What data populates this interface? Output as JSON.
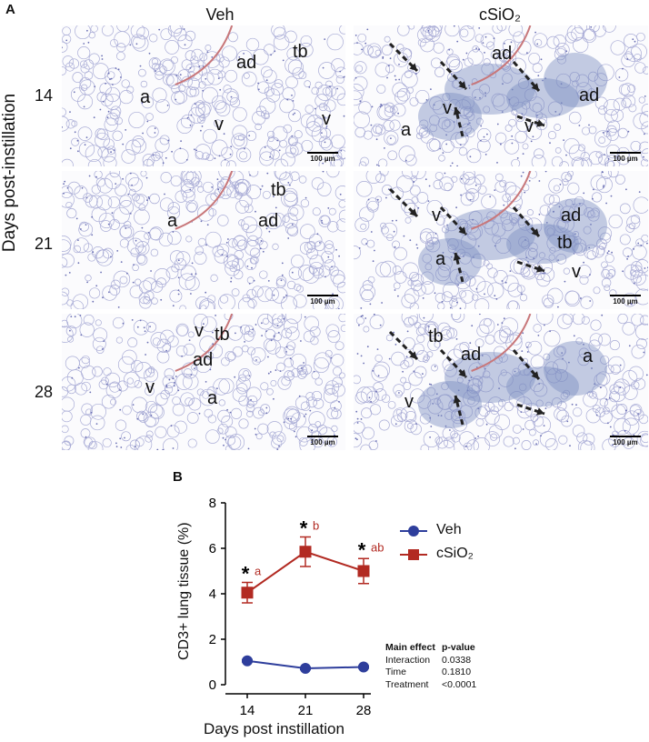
{
  "panel_a": {
    "letter": "A",
    "col_headers": [
      "Veh",
      "cSiO₂"
    ],
    "row_headers": [
      "14",
      "21",
      "28"
    ],
    "row_axis_label": "Days post-instillation",
    "scalebar_label": "100 µm",
    "tiles": [
      {
        "name": "veh-14",
        "labels": [
          "ad",
          "tb",
          "a",
          "v",
          "v"
        ]
      },
      {
        "name": "csio2-14",
        "labels": [
          "ad",
          "ad",
          "a",
          "v",
          "v"
        ]
      },
      {
        "name": "veh-21",
        "labels": [
          "tb",
          "ad",
          "a"
        ]
      },
      {
        "name": "csio2-21",
        "labels": [
          "v",
          "ad",
          "tb",
          "a",
          "v"
        ]
      },
      {
        "name": "veh-28",
        "labels": [
          "v",
          "tb",
          "ad",
          "v",
          "a"
        ]
      },
      {
        "name": "csio2-28",
        "labels": [
          "tb",
          "ad",
          "a",
          "v"
        ]
      }
    ]
  },
  "panel_b": {
    "letter": "B",
    "chart_data": {
      "type": "line",
      "xlabel": "Days post instillation",
      "ylabel": "CD3+ lung tissue (%)",
      "x": [
        14,
        21,
        28
      ],
      "ylim": [
        0,
        8
      ],
      "yticks": [
        0,
        2,
        4,
        6,
        8
      ],
      "series": [
        {
          "name": "Veh",
          "color": "#2e3e9c",
          "marker": "circle",
          "values": [
            1.05,
            0.72,
            0.78
          ],
          "errors": [
            0.05,
            0.05,
            0.05
          ]
        },
        {
          "name": "cSiO₂",
          "color": "#b22a22",
          "marker": "square",
          "values": [
            4.05,
            5.85,
            5.0
          ],
          "errors": [
            0.45,
            0.65,
            0.55
          ]
        }
      ],
      "annotations": [
        {
          "x": 14,
          "star": "*",
          "letter": "a"
        },
        {
          "x": 21,
          "star": "*",
          "letter": "b"
        },
        {
          "x": 28,
          "star": "*",
          "letter": "ab"
        }
      ],
      "stats_table": {
        "headers": [
          "Main effect",
          "p-value"
        ],
        "rows": [
          [
            "Interaction",
            "0.0338"
          ],
          [
            "Time",
            "0.1810"
          ],
          [
            "Treatment",
            "<0.0001"
          ]
        ]
      }
    }
  }
}
